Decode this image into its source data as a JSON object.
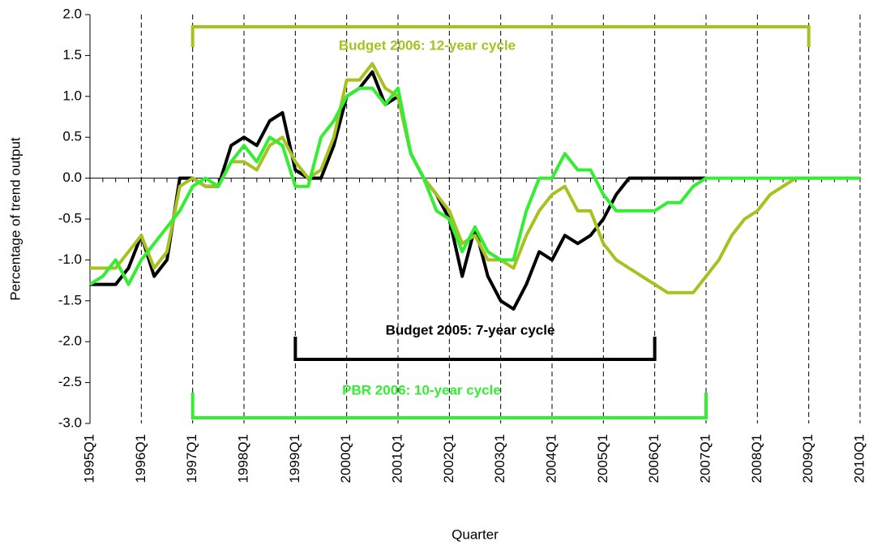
{
  "chart_data": {
    "type": "line",
    "y_label": "Percentage of trend output",
    "x_label": "Quarter",
    "categories": [
      "1995Q1",
      null,
      null,
      null,
      "1996Q1",
      null,
      null,
      null,
      "1997Q1",
      null,
      null,
      null,
      "1998Q1",
      null,
      null,
      null,
      "1999Q1",
      null,
      null,
      null,
      "2000Q1",
      null,
      null,
      null,
      "2001Q1",
      null,
      null,
      null,
      "2002Q1",
      null,
      null,
      null,
      "2003Q1",
      null,
      null,
      null,
      "2004Q1",
      null,
      null,
      null,
      "2005Q1",
      null,
      null,
      null,
      "2006Q1",
      null,
      null,
      null,
      "2007Q1",
      null,
      null,
      null,
      "2008Q1",
      null,
      null,
      null,
      "2009Q1",
      null,
      null,
      null,
      "2010Q1"
    ],
    "series": [
      {
        "color": "#000000",
        "values": [
          -1.3,
          -1.3,
          -1.3,
          -1.1,
          -0.7,
          -1.2,
          -1.0,
          0.0,
          0.0,
          -0.1,
          -0.1,
          0.4,
          0.5,
          0.4,
          0.7,
          0.8,
          0.1,
          0.0,
          0.0,
          0.4,
          1.0,
          1.1,
          1.3,
          0.9,
          1.0,
          0.3,
          0.0,
          -0.2,
          -0.5,
          -1.2,
          -0.6,
          -1.2,
          -1.5,
          -1.6,
          -1.3,
          -0.9,
          -1.0,
          -0.7,
          -0.8,
          -0.7,
          -0.5,
          -0.2,
          0.0,
          0.0,
          0.0,
          0.0,
          0.0,
          0.0,
          0.0,
          null,
          null,
          null,
          null,
          null,
          null,
          null,
          null,
          null,
          null,
          null,
          null
        ]
      },
      {
        "color": "#a6c21e",
        "values": [
          -1.1,
          -1.1,
          -1.1,
          -0.9,
          -0.7,
          -1.1,
          -0.9,
          -0.1,
          0.0,
          -0.1,
          -0.1,
          0.2,
          0.2,
          0.1,
          0.4,
          0.5,
          0.2,
          0.0,
          0.1,
          0.5,
          1.2,
          1.2,
          1.4,
          1.1,
          1.0,
          0.3,
          0.0,
          -0.2,
          -0.4,
          -0.8,
          -0.7,
          -1.0,
          -1.0,
          -1.1,
          -0.7,
          -0.4,
          -0.2,
          -0.1,
          -0.4,
          -0.4,
          -0.8,
          -1.0,
          -1.1,
          -1.2,
          -1.3,
          -1.4,
          -1.4,
          -1.4,
          -1.2,
          -1.0,
          -0.7,
          -0.5,
          -0.4,
          -0.2,
          -0.1,
          0.0,
          0.0,
          0.0,
          0.0,
          0.0,
          0.0
        ]
      },
      {
        "color": "#33ee33",
        "values": [
          -1.3,
          -1.2,
          -1.0,
          -1.3,
          -1.0,
          -0.8,
          -0.6,
          -0.4,
          -0.1,
          0.0,
          -0.1,
          0.2,
          0.4,
          0.2,
          0.5,
          0.4,
          -0.1,
          -0.1,
          0.5,
          0.7,
          1.0,
          1.1,
          1.1,
          0.9,
          1.1,
          0.3,
          0.0,
          -0.4,
          -0.5,
          -0.9,
          -0.6,
          -0.9,
          -1.0,
          -1.0,
          -0.4,
          0.0,
          0.0,
          0.3,
          0.1,
          0.1,
          -0.2,
          -0.4,
          -0.4,
          -0.4,
          -0.4,
          -0.3,
          -0.3,
          -0.1,
          0.0,
          0.0,
          0.0,
          0.0,
          0.0,
          0.0,
          0.0,
          0.0,
          0.0,
          0.0,
          0.0,
          0.0,
          0.0
        ]
      }
    ],
    "ylim": [
      -3,
      2
    ],
    "yticks": [
      {
        "value": -3,
        "label": "-3.0"
      },
      {
        "value": -2.5,
        "label": "-2.5"
      },
      {
        "value": -2,
        "label": "-2.0"
      },
      {
        "value": -1.5,
        "label": "-1.5"
      },
      {
        "value": -1,
        "label": "-1.0"
      },
      {
        "value": -0.5,
        "label": "-0.5"
      },
      {
        "value": 0,
        "label": "0.0"
      },
      {
        "value": 0.5,
        "label": "0.5"
      },
      {
        "value": 1,
        "label": "1.0"
      },
      {
        "value": 1.5,
        "label": "1.5"
      },
      {
        "value": 2,
        "label": "2.0"
      }
    ],
    "annotations": [
      {
        "text": "Budget 2006: 12-year cycle",
        "from": "1997Q1",
        "to": "2009Q1",
        "color": "#a6c21e"
      },
      {
        "text": "Budget 2005: 7-year cycle",
        "from": "1999Q1",
        "to": "2006Q1",
        "color": "#000000"
      },
      {
        "text": "PBR 2006: 10-year cycle",
        "from": "1997Q1",
        "to": "2007Q1",
        "color": "#33ee33"
      }
    ]
  }
}
